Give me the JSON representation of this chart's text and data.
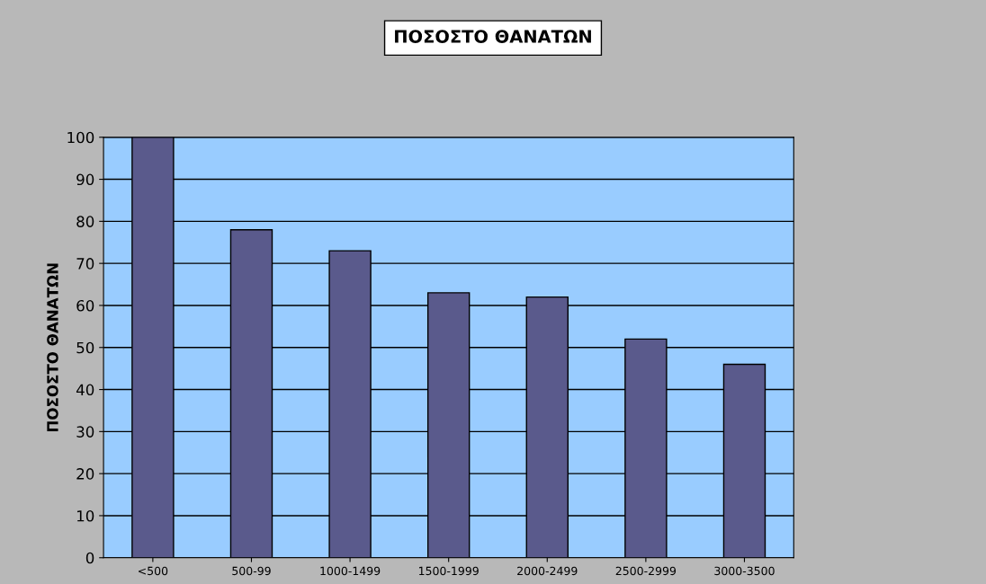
{
  "chart_data": {
    "type": "bar",
    "title": "ΠΟΣΟΣΤΟ ΘΑΝΑΤΩΝ",
    "ylabel": "ΠΟΣΟΣΤΟ ΘΑΝΑΤΩΝ",
    "categories": [
      "<500",
      "500-99",
      "1000-1499",
      "1500-1999",
      "2000-2499",
      "2500-2999",
      "3000-3500"
    ],
    "values": [
      100,
      78,
      73,
      63,
      62,
      52,
      46
    ],
    "color": "#5a5a8c",
    "ylim": [
      0,
      100
    ],
    "yticks": [
      0,
      10,
      20,
      30,
      40,
      50,
      60,
      70,
      80,
      90,
      100
    ],
    "grid": "y"
  }
}
